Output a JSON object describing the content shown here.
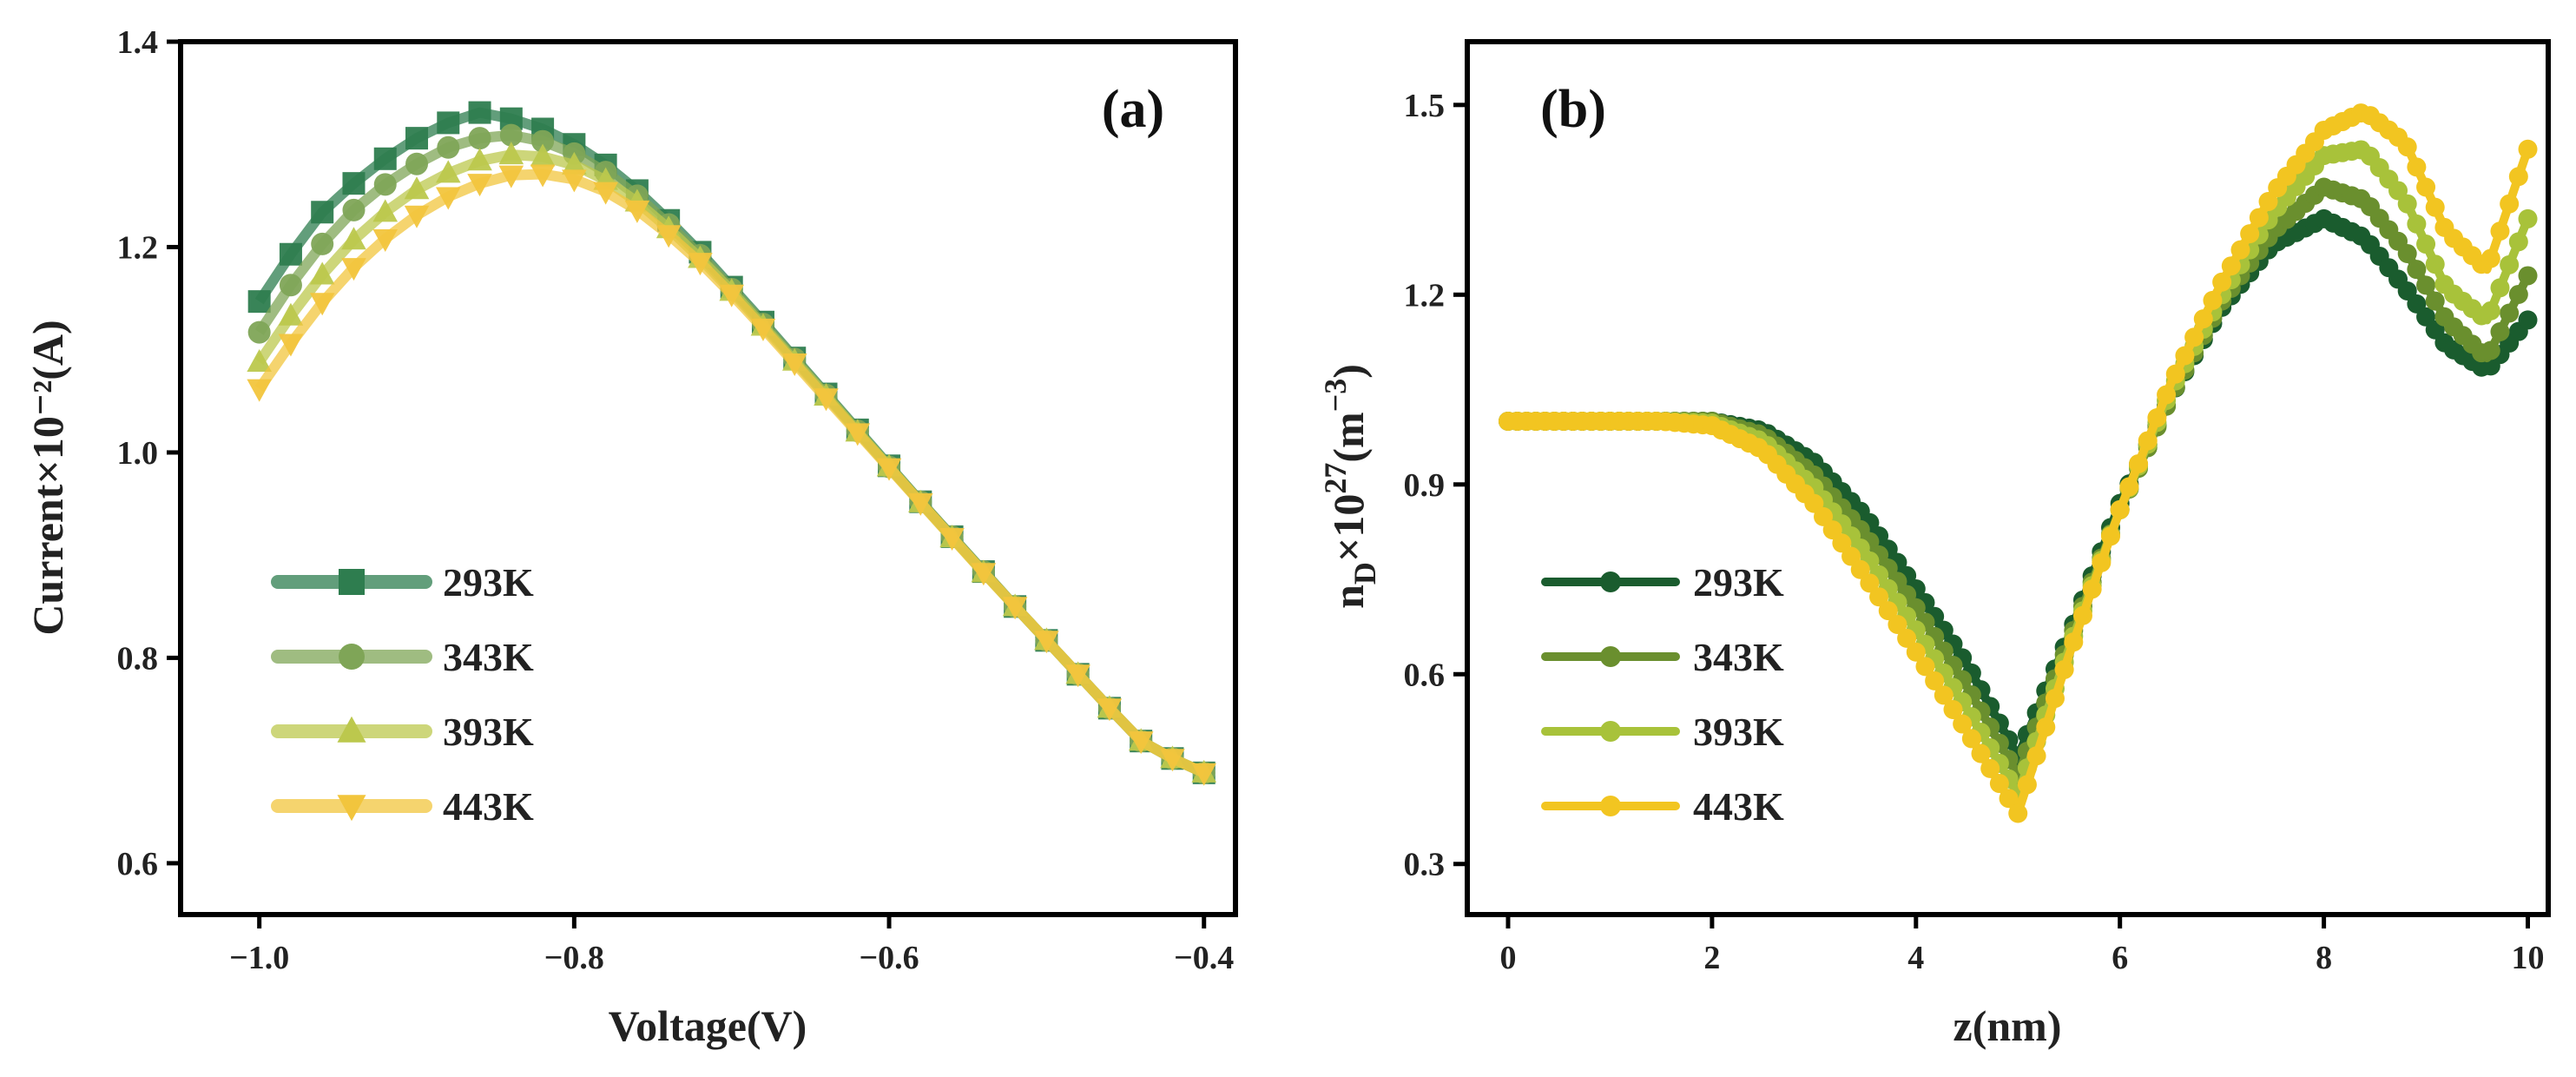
{
  "chart_data": [
    {
      "type": "line",
      "panel_label": "(a)",
      "xlabel": "Voltage(V)",
      "ylabel": "Current×10⁻²(A)",
      "xlim": [
        -1.05,
        -0.38
      ],
      "ylim": [
        0.55,
        1.4
      ],
      "xticks": [
        -1.0,
        -0.8,
        -0.6,
        -0.4
      ],
      "xtick_labels": [
        "−1.0",
        "−0.8",
        "−0.6",
        "−0.4"
      ],
      "yticks": [
        0.6,
        0.8,
        1.0,
        1.2,
        1.4
      ],
      "ytick_labels": [
        "0.6",
        "0.8",
        "1.0",
        "1.2",
        "1.4"
      ],
      "legend_position": "lower-left",
      "x": [
        -1.0,
        -0.98,
        -0.96,
        -0.94,
        -0.92,
        -0.9,
        -0.88,
        -0.86,
        -0.84,
        -0.82,
        -0.8,
        -0.78,
        -0.76,
        -0.74,
        -0.72,
        -0.7,
        -0.68,
        -0.66,
        -0.64,
        -0.62,
        -0.6,
        -0.58,
        -0.56,
        -0.54,
        -0.52,
        -0.5,
        -0.48,
        -0.46,
        -0.44,
        -0.42,
        -0.4
      ],
      "series": [
        {
          "name": "293K",
          "color": "#2e7d4f",
          "marker": "square",
          "values": [
            1.147,
            1.193,
            1.234,
            1.262,
            1.286,
            1.306,
            1.321,
            1.331,
            1.325,
            1.315,
            1.3,
            1.28,
            1.255,
            1.226,
            1.195,
            1.161,
            1.127,
            1.092,
            1.057,
            1.022,
            0.987,
            0.952,
            0.918,
            0.884,
            0.85,
            0.817,
            0.784,
            0.751,
            0.719,
            0.702,
            0.688
          ]
        },
        {
          "name": "343K",
          "color": "#7fa557",
          "marker": "circle",
          "values": [
            1.117,
            1.163,
            1.203,
            1.236,
            1.261,
            1.281,
            1.297,
            1.306,
            1.309,
            1.303,
            1.291,
            1.273,
            1.25,
            1.222,
            1.192,
            1.159,
            1.125,
            1.091,
            1.056,
            1.021,
            0.986,
            0.952,
            0.918,
            0.884,
            0.85,
            0.817,
            0.784,
            0.751,
            0.719,
            0.702,
            0.688
          ]
        },
        {
          "name": "393K",
          "color": "#bcc84d",
          "marker": "triangle-up",
          "values": [
            1.088,
            1.133,
            1.173,
            1.207,
            1.234,
            1.256,
            1.272,
            1.284,
            1.29,
            1.288,
            1.28,
            1.265,
            1.244,
            1.218,
            1.189,
            1.157,
            1.123,
            1.089,
            1.055,
            1.02,
            0.986,
            0.951,
            0.917,
            0.883,
            0.85,
            0.817,
            0.784,
            0.751,
            0.719,
            0.702,
            0.688
          ]
        },
        {
          "name": "443K",
          "color": "#f2c53d",
          "marker": "triangle-down",
          "values": [
            1.062,
            1.106,
            1.146,
            1.18,
            1.208,
            1.231,
            1.249,
            1.262,
            1.27,
            1.271,
            1.266,
            1.254,
            1.236,
            1.212,
            1.185,
            1.154,
            1.121,
            1.087,
            1.053,
            1.019,
            0.985,
            0.951,
            0.917,
            0.883,
            0.85,
            0.817,
            0.784,
            0.751,
            0.719,
            0.702,
            0.688
          ]
        }
      ]
    },
    {
      "type": "line",
      "panel_label": "(b)",
      "xlabel": "z(nm)",
      "ylabel": "n_D×10^27(m^-3)",
      "ylabel_parts": {
        "n": "n",
        "sub": "D",
        "times": "×10",
        "exp": "27",
        "unit_open": "(m",
        "unit_exp": "−3",
        "unit_close": ")"
      },
      "xlim": [
        -0.4,
        10.2
      ],
      "ylim": [
        0.22,
        1.6
      ],
      "xticks": [
        0,
        2,
        4,
        6,
        8,
        10
      ],
      "xtick_labels": [
        "0",
        "2",
        "4",
        "6",
        "8",
        "10"
      ],
      "yticks": [
        0.3,
        0.6,
        0.9,
        1.2,
        1.5
      ],
      "ytick_labels": [
        "0.3",
        "0.6",
        "0.9",
        "1.2",
        "1.5"
      ],
      "legend_position": "lower-left",
      "x": [
        0,
        0.5,
        1.0,
        1.5,
        2.0,
        2.5,
        3.0,
        3.5,
        4.0,
        4.5,
        5.0,
        5.5,
        6.0,
        6.5,
        7.0,
        7.5,
        8.0,
        8.4,
        8.8,
        9.2,
        9.6,
        10.0
      ],
      "series": [
        {
          "name": "293K",
          "color": "#1a5c2e",
          "marker": "circle",
          "values": [
            1.0,
            1.0,
            1.0,
            1.0,
            1.0,
            0.985,
            0.935,
            0.85,
            0.735,
            0.615,
            0.47,
            0.66,
            0.87,
            1.04,
            1.18,
            1.28,
            1.32,
            1.29,
            1.21,
            1.12,
            1.08,
            1.16
          ]
        },
        {
          "name": "343K",
          "color": "#6a8f2e",
          "marker": "circle",
          "values": [
            1.0,
            1.0,
            1.0,
            1.0,
            1.0,
            0.978,
            0.915,
            0.82,
            0.705,
            0.58,
            0.44,
            0.65,
            0.86,
            1.04,
            1.19,
            1.3,
            1.37,
            1.35,
            1.27,
            1.16,
            1.1,
            1.23
          ]
        },
        {
          "name": "393K",
          "color": "#a8c23a",
          "marker": "circle",
          "values": [
            1.0,
            1.0,
            1.0,
            1.0,
            0.997,
            0.968,
            0.895,
            0.79,
            0.67,
            0.545,
            0.41,
            0.64,
            0.86,
            1.05,
            1.2,
            1.33,
            1.42,
            1.43,
            1.35,
            1.21,
            1.16,
            1.32
          ]
        },
        {
          "name": "443K",
          "color": "#f2c521",
          "marker": "circle",
          "values": [
            1.0,
            1.0,
            1.0,
            1.0,
            0.993,
            0.955,
            0.87,
            0.755,
            0.635,
            0.51,
            0.38,
            0.63,
            0.86,
            1.06,
            1.22,
            1.36,
            1.46,
            1.49,
            1.44,
            1.3,
            1.24,
            1.43
          ]
        }
      ]
    }
  ]
}
